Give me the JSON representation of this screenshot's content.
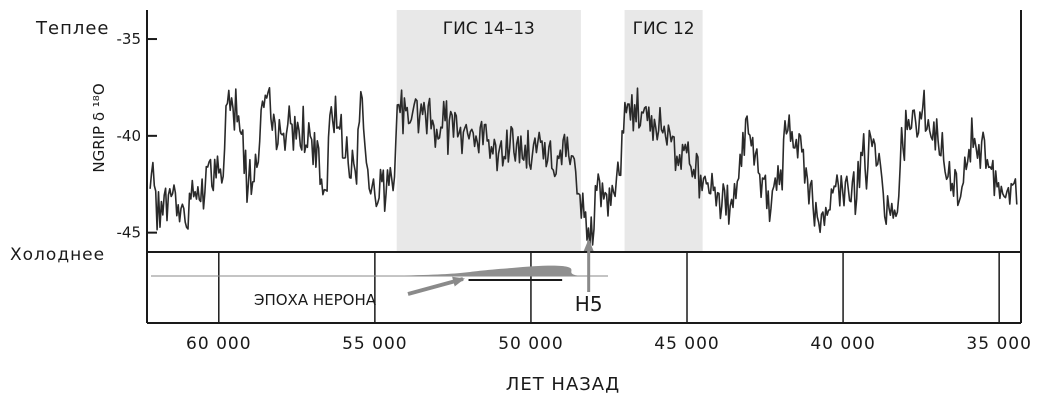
{
  "labels": {
    "warmer": "Теплее",
    "colder": "Холоднее",
    "y_axis": "NGRIP δ ¹⁸O",
    "x_axis": "ЛЕТ НАЗАД",
    "event": "H5",
    "era": "ЭПОХА НЕРОНА"
  },
  "chart_data": {
    "type": "line",
    "xlabel": "ЛЕТ НАЗАД",
    "ylabel": "NGRIP δ ¹⁸O",
    "xlim": [
      62300,
      34300
    ],
    "ylim": [
      -46,
      -33.5
    ],
    "x_reversed": true,
    "grid": false,
    "y_ticks": [
      -35,
      -40,
      -45
    ],
    "y_tick_labels": [
      "-35",
      "-40",
      "-45"
    ],
    "x_ticks": [
      60000,
      55000,
      50000,
      45000,
      40000,
      35000
    ],
    "x_tick_labels": [
      "60 000",
      "55 000",
      "50 000",
      "45 000",
      "40 000",
      "35 000"
    ],
    "shaded_bands": [
      {
        "label": "ГИС 14–13",
        "from": 54300,
        "to": 48400
      },
      {
        "label": "ГИС 12",
        "from": 47000,
        "to": 44500
      }
    ],
    "series_knots": [
      [
        62200,
        -42.8
      ],
      [
        61900,
        -44.0
      ],
      [
        61500,
        -43.0
      ],
      [
        61100,
        -44.5
      ],
      [
        60800,
        -42.5
      ],
      [
        60500,
        -43.2
      ],
      [
        60300,
        -42.0
      ],
      [
        60050,
        -41.5
      ],
      [
        59900,
        -42.6
      ],
      [
        59700,
        -38.0
      ],
      [
        59400,
        -38.3
      ],
      [
        59150,
        -41.0
      ],
      [
        58900,
        -42.8
      ],
      [
        58650,
        -39.0
      ],
      [
        58400,
        -38.5
      ],
      [
        58150,
        -40.0
      ],
      [
        57800,
        -39.5
      ],
      [
        57400,
        -39.8
      ],
      [
        57000,
        -40.5
      ],
      [
        56800,
        -41.5
      ],
      [
        56600,
        -42.8
      ],
      [
        56400,
        -39.2
      ],
      [
        56150,
        -38.7
      ],
      [
        55850,
        -41.0
      ],
      [
        55600,
        -42.2
      ],
      [
        55450,
        -37.6
      ],
      [
        55200,
        -42.5
      ],
      [
        54950,
        -42.6
      ],
      [
        54600,
        -42.8
      ],
      [
        54400,
        -42.3
      ],
      [
        54300,
        -38.6
      ],
      [
        54050,
        -38.5
      ],
      [
        53500,
        -38.8
      ],
      [
        53000,
        -39.3
      ],
      [
        52500,
        -39.2
      ],
      [
        52000,
        -39.7
      ],
      [
        51500,
        -40.2
      ],
      [
        51000,
        -40.4
      ],
      [
        50500,
        -40.6
      ],
      [
        50000,
        -40.8
      ],
      [
        49500,
        -40.7
      ],
      [
        49200,
        -42.0
      ],
      [
        48900,
        -40.6
      ],
      [
        48650,
        -41.2
      ],
      [
        48500,
        -42.5
      ],
      [
        48300,
        -44.0
      ],
      [
        48100,
        -45.0
      ],
      [
        47850,
        -42.8
      ],
      [
        47600,
        -43.5
      ],
      [
        47300,
        -43.0
      ],
      [
        47100,
        -41.0
      ],
      [
        46950,
        -38.0
      ],
      [
        46700,
        -38.6
      ],
      [
        46300,
        -39.0
      ],
      [
        45900,
        -39.4
      ],
      [
        45500,
        -39.9
      ],
      [
        45200,
        -40.6
      ],
      [
        44950,
        -40.3
      ],
      [
        44800,
        -42.0
      ],
      [
        44600,
        -42.6
      ],
      [
        44400,
        -42.9
      ],
      [
        44000,
        -43.4
      ],
      [
        43600,
        -43.8
      ],
      [
        43300,
        -41.5
      ],
      [
        43100,
        -39.8
      ],
      [
        42800,
        -41.2
      ],
      [
        42500,
        -42.8
      ],
      [
        42300,
        -44.2
      ],
      [
        42000,
        -41.5
      ],
      [
        41800,
        -39.3
      ],
      [
        41550,
        -40.2
      ],
      [
        41300,
        -41.0
      ],
      [
        41000,
        -43.2
      ],
      [
        40700,
        -44.2
      ],
      [
        40400,
        -43.4
      ],
      [
        40050,
        -42.5
      ],
      [
        39800,
        -43.2
      ],
      [
        39600,
        -42.8
      ],
      [
        39400,
        -41.2
      ],
      [
        39100,
        -40.5
      ],
      [
        38800,
        -42.0
      ],
      [
        38600,
        -44.0
      ],
      [
        38400,
        -44.3
      ],
      [
        38150,
        -42.0
      ],
      [
        37950,
        -38.5
      ],
      [
        37700,
        -39.3
      ],
      [
        37400,
        -39.2
      ],
      [
        37100,
        -39.9
      ],
      [
        36800,
        -41.0
      ],
      [
        36550,
        -42.5
      ],
      [
        36300,
        -42.9
      ],
      [
        36100,
        -42.0
      ],
      [
        35900,
        -40.0
      ],
      [
        35600,
        -40.5
      ],
      [
        35300,
        -41.2
      ],
      [
        35000,
        -43.3
      ],
      [
        34750,
        -43.0
      ],
      [
        34550,
        -42.5
      ],
      [
        34400,
        -42.8
      ]
    ],
    "event_marker": {
      "label": "H5",
      "x": 48150
    },
    "era_bar": {
      "label": "ЭПОХА НЕРОНА",
      "from": 52000,
      "to": 49000
    }
  }
}
